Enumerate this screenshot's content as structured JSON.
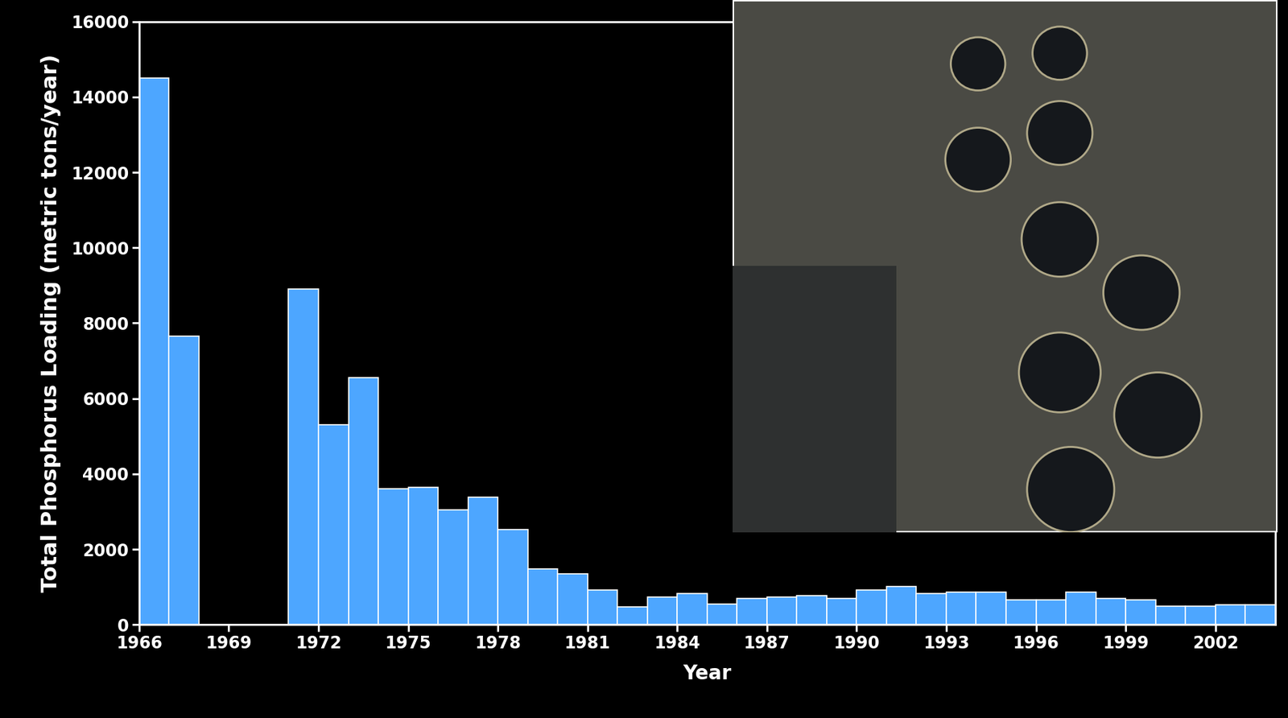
{
  "chart_data": {
    "type": "bar",
    "x_label": "Year",
    "y_label": "Total Phosphorus Loading (metric tons/year)",
    "x": [
      1966,
      1967,
      1968,
      1969,
      1970,
      1971,
      1972,
      1973,
      1974,
      1975,
      1976,
      1977,
      1978,
      1979,
      1980,
      1981,
      1982,
      1983,
      1984,
      1985,
      1986,
      1987,
      1988,
      1989,
      1990,
      1991,
      1992,
      1993,
      1994,
      1995,
      1996,
      1997,
      1998,
      1999,
      2000,
      2001,
      2002,
      2003
    ],
    "values": [
      14500,
      7650,
      null,
      null,
      null,
      8900,
      5300,
      6550,
      3600,
      3650,
      3050,
      3380,
      2530,
      1480,
      1350,
      920,
      480,
      730,
      820,
      540,
      700,
      730,
      770,
      700,
      920,
      1020,
      820,
      860,
      860,
      650,
      650,
      870,
      700,
      650,
      490,
      490,
      530,
      530
    ],
    "color": "#4da6ff",
    "xlim": [
      1966,
      2004
    ],
    "xticks": [
      1966,
      1969,
      1972,
      1975,
      1978,
      1981,
      1984,
      1987,
      1990,
      1993,
      1996,
      1999,
      2002
    ],
    "ylim": [
      0,
      16000
    ],
    "yticks": [
      0,
      2000,
      4000,
      6000,
      8000,
      10000,
      12000,
      14000,
      16000
    ],
    "grid": false
  }
}
